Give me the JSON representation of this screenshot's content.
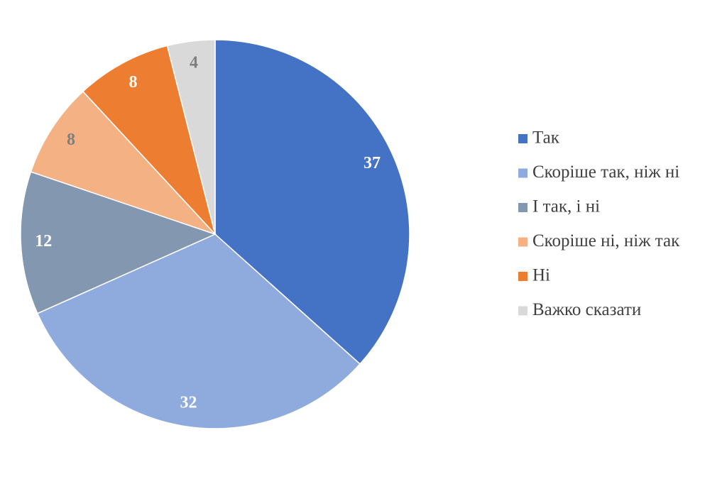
{
  "chart_data": {
    "type": "pie",
    "categories": [
      "Так",
      "Скоріше так, ніж ні",
      "І так, і ні",
      "Скоріше ні, ніж так",
      "Ні",
      "Важко сказати"
    ],
    "values": [
      37,
      32,
      12,
      8,
      8,
      4
    ],
    "colors": [
      "#4472c4",
      "#8faadc",
      "#8497b0",
      "#f4b183",
      "#ed7d31",
      "#d9d9d9"
    ],
    "legend": "right"
  }
}
